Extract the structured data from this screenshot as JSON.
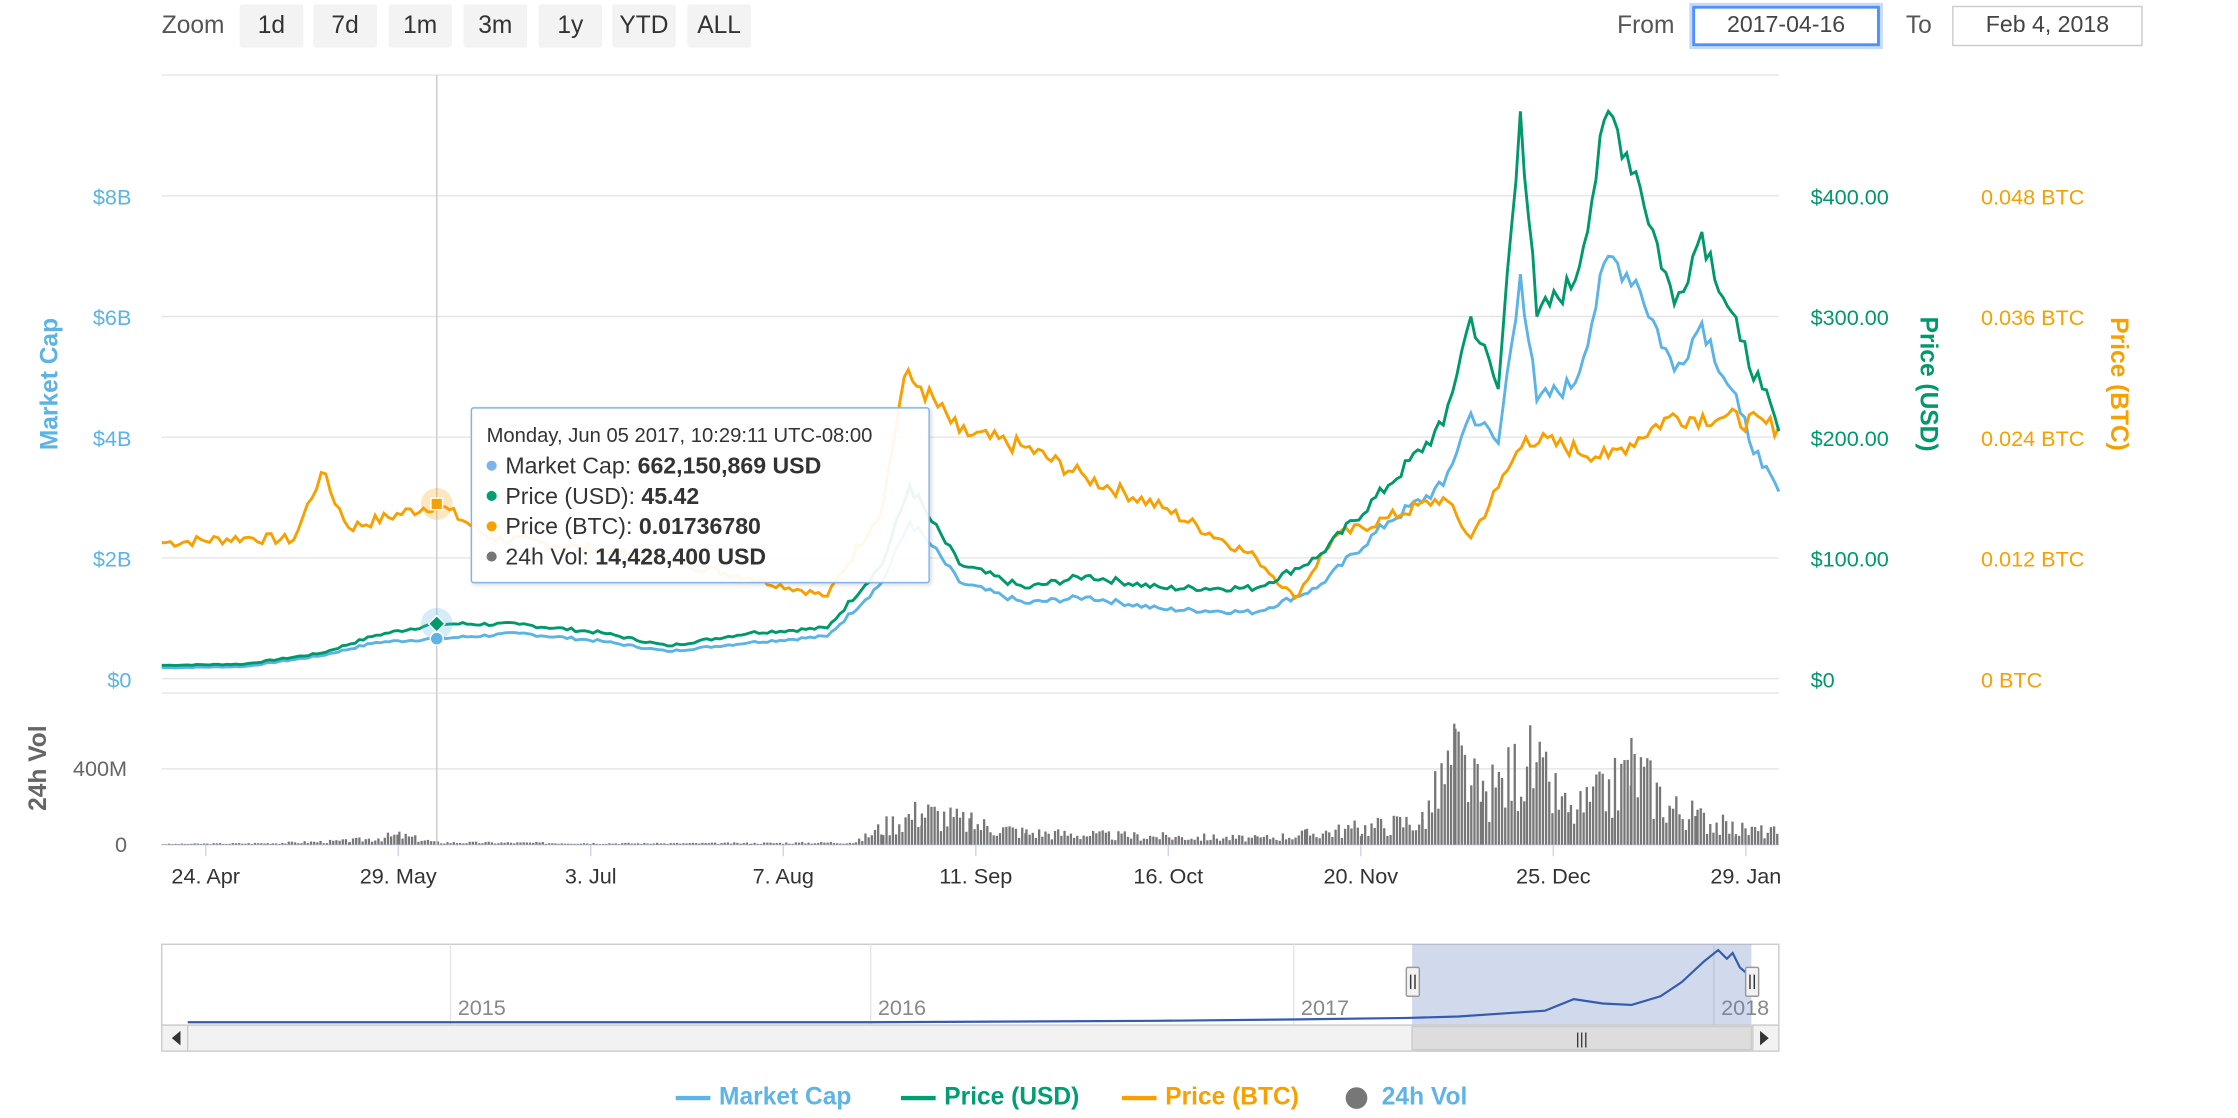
{
  "range_selector": {
    "zoom_label": "Zoom",
    "buttons": [
      "1d",
      "7d",
      "1m",
      "3m",
      "1y",
      "YTD",
      "ALL"
    ],
    "from_label": "From",
    "from_value": "2017-04-16",
    "to_label": "To",
    "to_value": "Feb 4, 2018"
  },
  "tooltip": {
    "title": "Monday, Jun 05 2017, 10:29:11 UTC-08:00",
    "rows": [
      {
        "label": "Market Cap: ",
        "value": "662,150,869 USD",
        "color": "#7cb5ec"
      },
      {
        "label": "Price (USD): ",
        "value": "45.42",
        "color": "#009e73"
      },
      {
        "label": "Price (BTC): ",
        "value": "0.01736780",
        "color": "#f7a000"
      },
      {
        "label": "24h Vol: ",
        "value": "14,428,400 USD",
        "color": "#777777"
      }
    ]
  },
  "legend": [
    {
      "name": "Market Cap",
      "color": "#5eb4e6"
    },
    {
      "name": "Price (USD)",
      "color": "#009e73"
    },
    {
      "name": "Price (BTC)",
      "color": "#f7a000"
    },
    {
      "name": "24h Vol",
      "color": "#777777"
    }
  ],
  "colors": {
    "market_cap": "#5bb4e5",
    "price_usd": "#00996b",
    "price_btc": "#f7a000",
    "volume": "#777777",
    "navigator": "#335cad"
  },
  "chart_data": {
    "type": "line",
    "x_range": [
      "2017-04-16",
      "2018-02-04"
    ],
    "x_ticks": [
      {
        "date": "2017-04-24",
        "label": "24. Apr"
      },
      {
        "date": "2017-05-29",
        "label": "29. May"
      },
      {
        "date": "2017-07-03",
        "label": "3. Jul"
      },
      {
        "date": "2017-08-07",
        "label": "7. Aug"
      },
      {
        "date": "2017-09-11",
        "label": "11. Sep"
      },
      {
        "date": "2017-10-16",
        "label": "16. Oct"
      },
      {
        "date": "2017-11-20",
        "label": "20. Nov"
      },
      {
        "date": "2017-12-25",
        "label": "25. Dec"
      },
      {
        "date": "2018-01-29",
        "label": "29. Jan"
      }
    ],
    "axes": {
      "market_cap": {
        "title": "Market Cap",
        "range": [
          0,
          10000000000
        ],
        "ticks": [
          {
            "value": 0,
            "label": "$0"
          },
          {
            "value": 2000000000,
            "label": "$2B"
          },
          {
            "value": 4000000000,
            "label": "$4B"
          },
          {
            "value": 6000000000,
            "label": "$6B"
          },
          {
            "value": 8000000000,
            "label": "$8B"
          }
        ]
      },
      "price_usd": {
        "title": "Price (USD)",
        "range": [
          0,
          500
        ],
        "ticks": [
          {
            "value": 0,
            "label": "$0"
          },
          {
            "value": 100,
            "label": "$100.00"
          },
          {
            "value": 200,
            "label": "$200.00"
          },
          {
            "value": 300,
            "label": "$300.00"
          },
          {
            "value": 400,
            "label": "$400.00"
          }
        ]
      },
      "price_btc": {
        "title": "Price (BTC)",
        "range": [
          0,
          0.06
        ],
        "ticks": [
          {
            "value": 0,
            "label": "0 BTC"
          },
          {
            "value": 0.012,
            "label": "0.012 BTC"
          },
          {
            "value": 0.024,
            "label": "0.024 BTC"
          },
          {
            "value": 0.036,
            "label": "0.036 BTC"
          },
          {
            "value": 0.048,
            "label": "0.048 BTC"
          }
        ]
      },
      "volume": {
        "title": "24h Vol",
        "range": [
          0,
          800000000
        ],
        "ticks": [
          {
            "value": 0,
            "label": "0"
          },
          {
            "value": 400000000,
            "label": "400M"
          }
        ]
      }
    },
    "series": [
      {
        "name": "Market Cap",
        "axis": "market_cap",
        "points": [
          [
            "2017-04-16",
            180000000
          ],
          [
            "2017-05-01",
            200000000
          ],
          [
            "2017-05-15",
            380000000
          ],
          [
            "2017-05-25",
            600000000
          ],
          [
            "2017-06-05",
            662150869
          ],
          [
            "2017-06-20",
            750000000
          ],
          [
            "2017-07-05",
            620000000
          ],
          [
            "2017-07-17",
            450000000
          ],
          [
            "2017-08-01",
            600000000
          ],
          [
            "2017-08-15",
            700000000
          ],
          [
            "2017-08-25",
            1600000000
          ],
          [
            "2017-08-30",
            2600000000
          ],
          [
            "2017-09-03",
            2200000000
          ],
          [
            "2017-09-08",
            1600000000
          ],
          [
            "2017-09-20",
            1250000000
          ],
          [
            "2017-10-01",
            1350000000
          ],
          [
            "2017-10-15",
            1150000000
          ],
          [
            "2017-11-01",
            1100000000
          ],
          [
            "2017-11-12",
            1500000000
          ],
          [
            "2017-11-25",
            2600000000
          ],
          [
            "2017-12-05",
            3200000000
          ],
          [
            "2017-12-10",
            4400000000
          ],
          [
            "2017-12-15",
            3900000000
          ],
          [
            "2017-12-19",
            6700000000
          ],
          [
            "2017-12-22",
            4600000000
          ],
          [
            "2017-12-29",
            4900000000
          ],
          [
            "2018-01-04",
            7000000000
          ],
          [
            "2018-01-09",
            6600000000
          ],
          [
            "2018-01-16",
            5100000000
          ],
          [
            "2018-01-21",
            5900000000
          ],
          [
            "2018-01-28",
            4400000000
          ],
          [
            "2018-02-01",
            3500000000
          ],
          [
            "2018-02-04",
            3100000000
          ]
        ]
      },
      {
        "name": "Price (USD)",
        "axis": "price_usd",
        "points": [
          [
            "2017-04-16",
            11
          ],
          [
            "2017-05-01",
            12
          ],
          [
            "2017-05-15",
            21
          ],
          [
            "2017-05-25",
            36
          ],
          [
            "2017-06-05",
            45.42
          ],
          [
            "2017-06-20",
            45
          ],
          [
            "2017-07-05",
            38
          ],
          [
            "2017-07-17",
            27
          ],
          [
            "2017-08-01",
            38
          ],
          [
            "2017-08-15",
            42
          ],
          [
            "2017-08-25",
            95
          ],
          [
            "2017-08-30",
            160
          ],
          [
            "2017-09-03",
            130
          ],
          [
            "2017-09-08",
            95
          ],
          [
            "2017-09-20",
            75
          ],
          [
            "2017-10-01",
            85
          ],
          [
            "2017-10-15",
            75
          ],
          [
            "2017-11-01",
            75
          ],
          [
            "2017-11-12",
            100
          ],
          [
            "2017-11-25",
            160
          ],
          [
            "2017-12-05",
            210
          ],
          [
            "2017-12-10",
            300
          ],
          [
            "2017-12-15",
            240
          ],
          [
            "2017-12-19",
            470
          ],
          [
            "2017-12-22",
            300
          ],
          [
            "2017-12-29",
            330
          ],
          [
            "2018-01-04",
            470
          ],
          [
            "2018-01-09",
            420
          ],
          [
            "2018-01-16",
            310
          ],
          [
            "2018-01-21",
            370
          ],
          [
            "2018-01-28",
            280
          ],
          [
            "2018-02-01",
            240
          ],
          [
            "2018-02-04",
            205
          ]
        ]
      },
      {
        "name": "Price (BTC)",
        "axis": "price_btc",
        "points": [
          [
            "2017-04-16",
            0.0135
          ],
          [
            "2017-05-01",
            0.014
          ],
          [
            "2017-05-10",
            0.0138
          ],
          [
            "2017-05-15",
            0.0205
          ],
          [
            "2017-05-20",
            0.015
          ],
          [
            "2017-06-05",
            0.0173678
          ],
          [
            "2017-06-15",
            0.014
          ],
          [
            "2017-07-01",
            0.013
          ],
          [
            "2017-07-15",
            0.012
          ],
          [
            "2017-08-01",
            0.01
          ],
          [
            "2017-08-15",
            0.0082
          ],
          [
            "2017-08-25",
            0.017
          ],
          [
            "2017-08-29",
            0.03
          ],
          [
            "2017-09-01",
            0.029
          ],
          [
            "2017-09-08",
            0.0245
          ],
          [
            "2017-09-20",
            0.023
          ],
          [
            "2017-10-01",
            0.02
          ],
          [
            "2017-10-15",
            0.017
          ],
          [
            "2017-11-01",
            0.012
          ],
          [
            "2017-11-08",
            0.008
          ],
          [
            "2017-11-15",
            0.014
          ],
          [
            "2017-11-25",
            0.016
          ],
          [
            "2017-12-05",
            0.018
          ],
          [
            "2017-12-10",
            0.014
          ],
          [
            "2017-12-15",
            0.019
          ],
          [
            "2017-12-20",
            0.024
          ],
          [
            "2018-01-04",
            0.022
          ],
          [
            "2018-01-15",
            0.026
          ],
          [
            "2018-01-25",
            0.026
          ],
          [
            "2018-02-04",
            0.025
          ]
        ]
      },
      {
        "name": "24h Vol",
        "axis": "volume",
        "type": "column",
        "points": [
          [
            "2017-04-16",
            4000000
          ],
          [
            "2017-05-06",
            10000000
          ],
          [
            "2017-05-20",
            25000000
          ],
          [
            "2017-05-29",
            60000000
          ],
          [
            "2017-06-05",
            14428400
          ],
          [
            "2017-07-15",
            8000000
          ],
          [
            "2017-08-01",
            10000000
          ],
          [
            "2017-08-20",
            15000000
          ],
          [
            "2017-08-25",
            120000000
          ],
          [
            "2017-09-01",
            220000000
          ],
          [
            "2017-09-10",
            140000000
          ],
          [
            "2017-09-20",
            80000000
          ],
          [
            "2017-10-05",
            60000000
          ],
          [
            "2017-10-20",
            50000000
          ],
          [
            "2017-11-01",
            40000000
          ],
          [
            "2017-11-10",
            70000000
          ],
          [
            "2017-11-20",
            110000000
          ],
          [
            "2017-12-01",
            160000000
          ],
          [
            "2017-12-07",
            580000000
          ],
          [
            "2017-12-12",
            300000000
          ],
          [
            "2017-12-20",
            550000000
          ],
          [
            "2017-12-28",
            200000000
          ],
          [
            "2018-01-05",
            380000000
          ],
          [
            "2018-01-08",
            520000000
          ],
          [
            "2018-01-15",
            250000000
          ],
          [
            "2018-01-20",
            180000000
          ],
          [
            "2018-01-27",
            100000000
          ],
          [
            "2018-02-04",
            80000000
          ]
        ]
      }
    ],
    "navigator": {
      "labels": [
        "2015",
        "2016",
        "2017",
        "2018"
      ],
      "selected_range": [
        "2017-04-16",
        "2018-02-04"
      ],
      "handle_glyph": "|||"
    },
    "legend_position": "bottom-center"
  }
}
